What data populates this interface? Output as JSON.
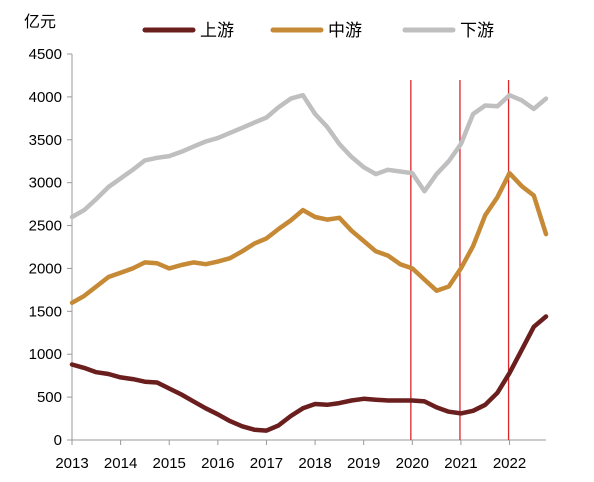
{
  "chart_data": {
    "type": "line",
    "unit_label": "亿元",
    "ylim": [
      0,
      4500
    ],
    "yticks": [
      0,
      500,
      1000,
      1500,
      2000,
      2500,
      3000,
      3500,
      4000,
      4500
    ],
    "xlim": [
      2013.0,
      2022.75
    ],
    "xticks": [
      2013,
      2014,
      2015,
      2016,
      2017,
      2018,
      2019,
      2020,
      2021,
      2022
    ],
    "grid": false,
    "legend_position": "top",
    "vertical_markers": [
      2019.97,
      2020.98,
      2021.98
    ],
    "marker_color": "#d9262b",
    "series": [
      {
        "name": "上游",
        "color": "#6b1e1e",
        "x": [
          2013.0,
          2013.25,
          2013.5,
          2013.75,
          2014.0,
          2014.25,
          2014.5,
          2014.75,
          2015.0,
          2015.25,
          2015.5,
          2015.75,
          2016.0,
          2016.25,
          2016.5,
          2016.75,
          2017.0,
          2017.25,
          2017.5,
          2017.75,
          2018.0,
          2018.25,
          2018.5,
          2018.75,
          2019.0,
          2019.25,
          2019.5,
          2019.75,
          2020.0,
          2020.25,
          2020.5,
          2020.75,
          2021.0,
          2021.25,
          2021.5,
          2021.75,
          2022.0,
          2022.25,
          2022.5,
          2022.75
        ],
        "y": [
          880,
          840,
          790,
          770,
          730,
          710,
          680,
          670,
          600,
          530,
          450,
          370,
          300,
          220,
          160,
          120,
          110,
          170,
          280,
          370,
          420,
          410,
          430,
          460,
          480,
          470,
          460,
          460,
          460,
          450,
          380,
          330,
          310,
          340,
          410,
          550,
          780,
          1050,
          1320,
          1440
        ]
      },
      {
        "name": "中游",
        "color": "#c68a37",
        "x": [
          2013.0,
          2013.25,
          2013.5,
          2013.75,
          2014.0,
          2014.25,
          2014.5,
          2014.75,
          2015.0,
          2015.25,
          2015.5,
          2015.75,
          2016.0,
          2016.25,
          2016.5,
          2016.75,
          2017.0,
          2017.25,
          2017.5,
          2017.75,
          2018.0,
          2018.25,
          2018.5,
          2018.75,
          2019.0,
          2019.25,
          2019.5,
          2019.75,
          2020.0,
          2020.25,
          2020.5,
          2020.75,
          2021.0,
          2021.25,
          2021.5,
          2021.75,
          2022.0,
          2022.25,
          2022.5,
          2022.75
        ],
        "y": [
          1600,
          1680,
          1790,
          1900,
          1950,
          2000,
          2070,
          2060,
          2000,
          2040,
          2070,
          2050,
          2080,
          2120,
          2200,
          2290,
          2350,
          2460,
          2560,
          2680,
          2600,
          2570,
          2590,
          2440,
          2320,
          2200,
          2150,
          2050,
          2000,
          1870,
          1740,
          1790,
          2000,
          2260,
          2620,
          2830,
          3110,
          2960,
          2850,
          2400
        ]
      },
      {
        "name": "下游",
        "color": "#bfbfbf",
        "x": [
          2013.0,
          2013.25,
          2013.5,
          2013.75,
          2014.0,
          2014.25,
          2014.5,
          2014.75,
          2015.0,
          2015.25,
          2015.5,
          2015.75,
          2016.0,
          2016.25,
          2016.5,
          2016.75,
          2017.0,
          2017.25,
          2017.5,
          2017.75,
          2018.0,
          2018.25,
          2018.5,
          2018.75,
          2019.0,
          2019.25,
          2019.5,
          2019.75,
          2020.0,
          2020.25,
          2020.5,
          2020.75,
          2021.0,
          2021.25,
          2021.5,
          2021.75,
          2022.0,
          2022.25,
          2022.5,
          2022.75
        ],
        "y": [
          2600,
          2680,
          2810,
          2950,
          3050,
          3150,
          3260,
          3290,
          3310,
          3360,
          3420,
          3480,
          3520,
          3580,
          3640,
          3700,
          3760,
          3880,
          3980,
          4020,
          3800,
          3650,
          3450,
          3300,
          3180,
          3100,
          3150,
          3130,
          3110,
          2900,
          3100,
          3250,
          3450,
          3800,
          3900,
          3890,
          4020,
          3960,
          3860,
          3980
        ]
      }
    ]
  }
}
